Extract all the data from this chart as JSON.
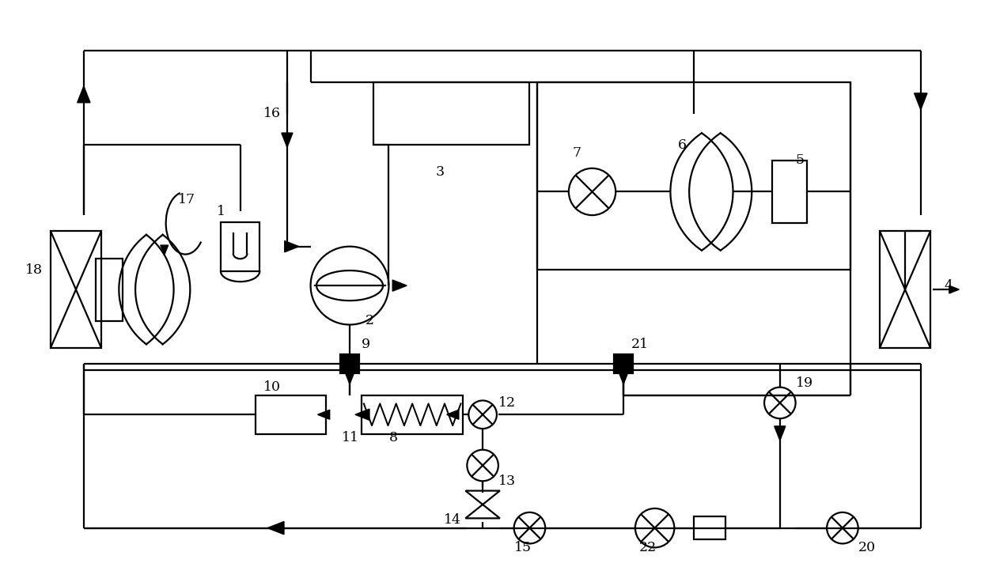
{
  "bg_color": "#ffffff",
  "lc": "#000000",
  "lw": 1.6,
  "fig_w": 12.4,
  "fig_h": 7.41,
  "dpi": 100
}
